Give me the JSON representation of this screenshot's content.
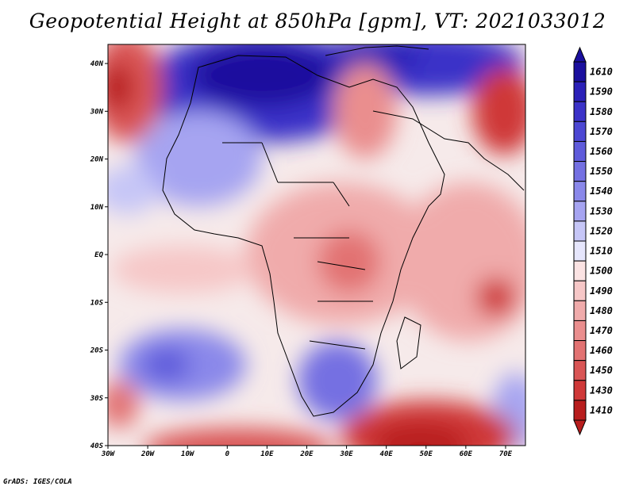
{
  "title": "Geopotential Height at 850hPa [gpm], VT: 2021033012",
  "credit": "GrADS: IGES/COLA",
  "map": {
    "region": "Africa and Arabian Peninsula",
    "x_ticks": [
      "30W",
      "20W",
      "10W",
      "0",
      "10E",
      "20E",
      "30E",
      "40E",
      "50E",
      "60E",
      "70E"
    ],
    "y_ticks": [
      "40N",
      "30N",
      "20N",
      "10N",
      "EQ",
      "10S",
      "20S",
      "30S",
      "40S"
    ],
    "lon_range": [
      -30,
      75
    ],
    "lat_range": [
      -40,
      44
    ]
  },
  "colorbar": {
    "levels": [
      "1610",
      "1590",
      "1580",
      "1570",
      "1560",
      "1550",
      "1540",
      "1530",
      "1520",
      "1510",
      "1500",
      "1490",
      "1480",
      "1470",
      "1460",
      "1450",
      "1430",
      "1410"
    ],
    "colors": [
      "#1a0f9e",
      "#2b20b8",
      "#3b32c8",
      "#4c47d3",
      "#5f5bdb",
      "#7470e2",
      "#8a88ea",
      "#a6a4f1",
      "#c6c6f7",
      "#e6e6fc",
      "#fbe3e3",
      "#f6c7c7",
      "#f0abab",
      "#ea8e8e",
      "#e27272",
      "#d95555",
      "#cf3838",
      "#b81d1d"
    ]
  }
}
